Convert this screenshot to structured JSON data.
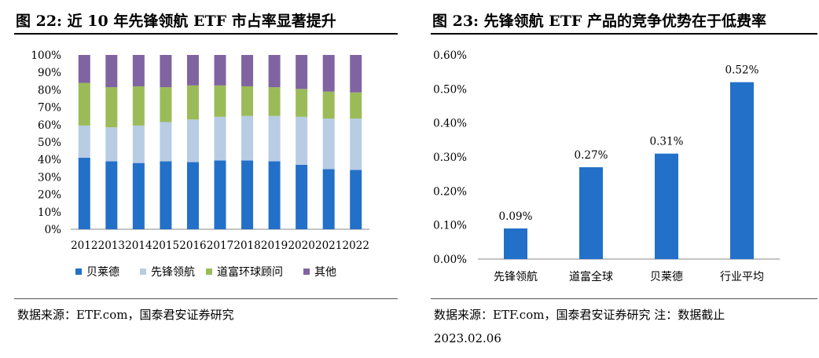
{
  "left_panel": {
    "title": "图 22: 近 10 年先锋领航 ETF 市占率显著提升",
    "source": "数据来源：ETF.com，国泰君安证券研究"
  },
  "right_panel": {
    "title": "图 23: 先锋领航 ETF 产品的竞争优势在于低费率",
    "source_line1": "数据来源：ETF.com，国泰君安证券研究  注：数据截止",
    "source_line2": "2023.02.06"
  },
  "chart_data": [
    {
      "type": "bar",
      "stacked": true,
      "categories": [
        "2012",
        "2013",
        "2014",
        "2015",
        "2016",
        "2017",
        "2018",
        "2019",
        "2020",
        "2021",
        "2022"
      ],
      "ylim": [
        0,
        100
      ],
      "yticks": [
        "0%",
        "10%",
        "20%",
        "30%",
        "40%",
        "50%",
        "60%",
        "70%",
        "80%",
        "90%",
        "100%"
      ],
      "grid": false,
      "legend_position": "bottom",
      "series": [
        {
          "name": "贝莱德",
          "color": "#2370c9",
          "values": [
            41,
            39,
            38,
            39,
            38.5,
            39.5,
            39.5,
            39,
            37,
            34.5,
            34
          ]
        },
        {
          "name": "先锋领航",
          "color": "#b8cce4",
          "values": [
            18.5,
            19.5,
            21.5,
            22.5,
            24.5,
            25,
            25.5,
            26,
            27.5,
            29,
            29.5
          ]
        },
        {
          "name": "道富环球顾问",
          "color": "#9bbb59",
          "values": [
            24.5,
            23,
            22.5,
            20,
            19.5,
            18,
            17,
            16.5,
            16,
            15.5,
            15
          ]
        },
        {
          "name": "其他",
          "color": "#8064a2",
          "values": [
            16,
            18.5,
            18,
            18.5,
            17.5,
            17.5,
            18,
            18.5,
            19.5,
            21,
            21.5
          ]
        }
      ]
    },
    {
      "type": "bar",
      "categories": [
        "先锋领航",
        "道富全球",
        "贝莱德",
        "行业平均"
      ],
      "values": [
        0.09,
        0.27,
        0.31,
        0.52
      ],
      "data_labels": [
        "0.09%",
        "0.27%",
        "0.31%",
        "0.52%"
      ],
      "ylim": [
        0,
        0.6
      ],
      "yticks": [
        "0.00%",
        "0.10%",
        "0.20%",
        "0.30%",
        "0.40%",
        "0.50%",
        "0.60%"
      ],
      "grid": false,
      "color": "#2370c9"
    }
  ]
}
